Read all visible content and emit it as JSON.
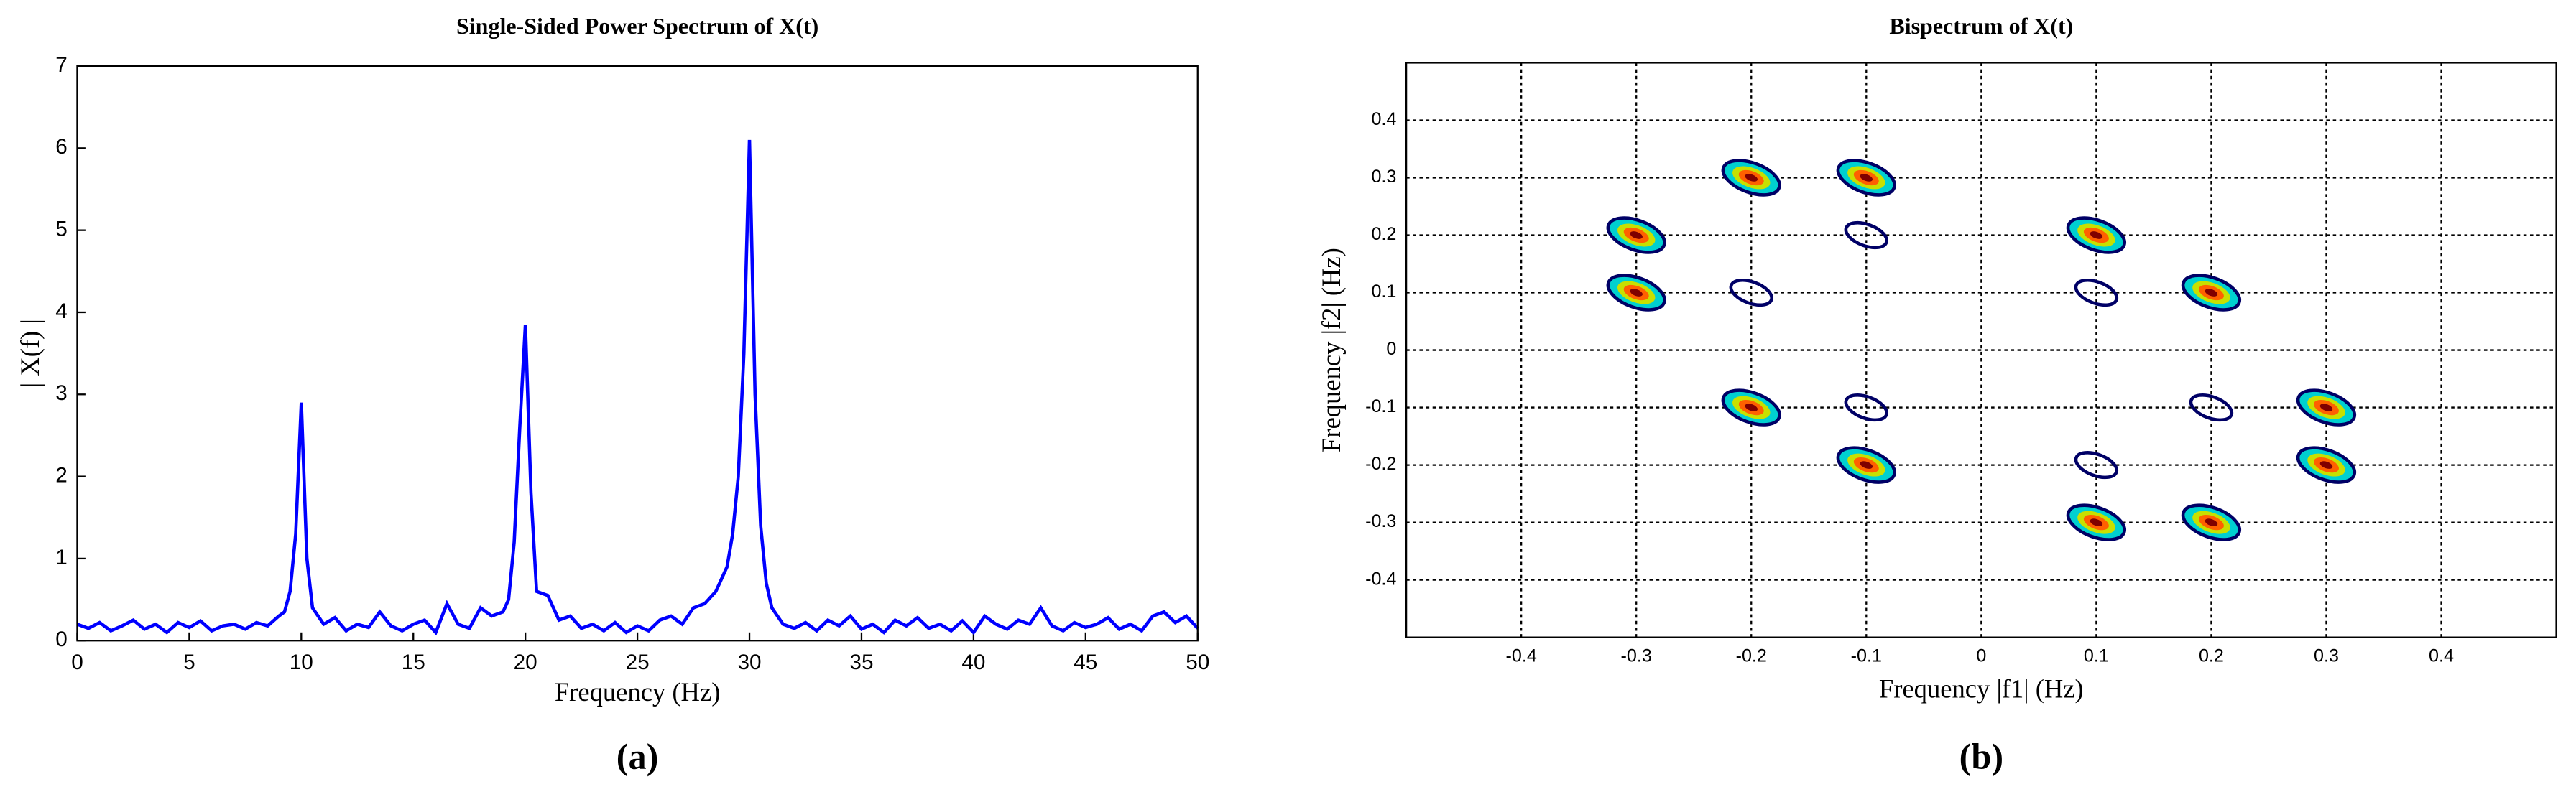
{
  "chart_data": [
    {
      "type": "line",
      "title": "Single-Sided Power Spectrum of X(t)",
      "xlabel": "Frequency (Hz)",
      "ylabel": "| X(f) |",
      "caption": "(a)",
      "x": [
        0,
        0.5,
        1,
        1.5,
        2,
        2.5,
        3,
        3.5,
        4,
        4.5,
        5,
        5.5,
        6,
        6.5,
        7,
        7.5,
        8,
        8.5,
        9,
        9.25,
        9.5,
        9.75,
        10,
        10.25,
        10.5,
        11,
        11.5,
        12,
        12.5,
        13,
        13.5,
        14,
        14.5,
        15,
        15.5,
        16,
        16.5,
        17,
        17.5,
        18,
        18.5,
        19,
        19.25,
        19.5,
        19.75,
        20,
        20.25,
        20.5,
        21,
        21.5,
        22,
        22.5,
        23,
        23.5,
        24,
        24.5,
        25,
        25.5,
        26,
        26.5,
        27,
        27.5,
        28,
        28.5,
        29,
        29.25,
        29.5,
        29.75,
        30,
        30.25,
        30.5,
        30.75,
        31,
        31.5,
        32,
        32.5,
        33,
        33.5,
        34,
        34.5,
        35,
        35.5,
        36,
        36.5,
        37,
        37.5,
        38,
        38.5,
        39,
        39.5,
        40,
        40.5,
        41,
        41.5,
        42,
        42.5,
        43,
        43.5,
        44,
        44.5,
        45,
        45.5,
        46,
        46.5,
        47,
        47.5,
        48,
        48.5,
        49,
        49.5,
        50
      ],
      "series": [
        {
          "color": "#0000ff",
          "values": [
            0.2,
            0.15,
            0.22,
            0.12,
            0.18,
            0.25,
            0.14,
            0.2,
            0.1,
            0.22,
            0.16,
            0.24,
            0.12,
            0.18,
            0.2,
            0.14,
            0.22,
            0.18,
            0.3,
            0.35,
            0.6,
            1.3,
            2.9,
            1.0,
            0.4,
            0.2,
            0.28,
            0.12,
            0.2,
            0.16,
            0.35,
            0.18,
            0.12,
            0.2,
            0.25,
            0.1,
            0.45,
            0.2,
            0.15,
            0.4,
            0.3,
            0.35,
            0.5,
            1.2,
            2.6,
            3.85,
            1.8,
            0.6,
            0.55,
            0.25,
            0.3,
            0.15,
            0.2,
            0.12,
            0.22,
            0.1,
            0.18,
            0.12,
            0.25,
            0.3,
            0.2,
            0.4,
            0.45,
            0.6,
            0.9,
            1.3,
            2.0,
            3.5,
            6.1,
            3.0,
            1.4,
            0.7,
            0.4,
            0.2,
            0.15,
            0.22,
            0.12,
            0.25,
            0.18,
            0.3,
            0.14,
            0.2,
            0.1,
            0.25,
            0.18,
            0.28,
            0.15,
            0.2,
            0.12,
            0.24,
            0.1,
            0.3,
            0.2,
            0.14,
            0.25,
            0.2,
            0.4,
            0.18,
            0.12,
            0.22,
            0.16,
            0.2,
            0.28,
            0.14,
            0.2,
            0.12,
            0.3,
            0.35,
            0.22,
            0.3,
            0.15
          ]
        }
      ],
      "xlim": [
        0,
        50
      ],
      "ylim": [
        0,
        7
      ],
      "xticks": [
        0,
        5,
        10,
        15,
        20,
        25,
        30,
        35,
        40,
        45,
        50
      ],
      "yticks": [
        0,
        1,
        2,
        3,
        4,
        5,
        6,
        7
      ]
    },
    {
      "type": "contour",
      "title": "Bispectrum of X(t)",
      "xlabel": "Frequency |f1| (Hz)",
      "ylabel": "Frequency |f2| (Hz)",
      "caption": "(b)",
      "series": [
        {
          "color": "#00d0d0",
          "x": [
            -0.2,
            -0.1,
            -0.3,
            0.1,
            -0.3,
            0.2,
            -0.2,
            0.3,
            -0.1,
            0.3,
            0.1,
            0.2
          ],
          "y": [
            0.3,
            0.3,
            0.2,
            0.2,
            0.1,
            0.1,
            -0.1,
            -0.1,
            -0.2,
            -0.2,
            -0.3,
            -0.3
          ]
        },
        {
          "color": "#000066",
          "x": [
            -0.1,
            -0.2,
            0.1,
            -0.1,
            0.2,
            0.1
          ],
          "y": [
            0.2,
            0.1,
            0.1,
            -0.1,
            -0.1,
            -0.2
          ]
        }
      ],
      "xlim": [
        -0.5,
        0.5
      ],
      "ylim": [
        -0.5,
        0.5
      ],
      "xticks": [
        -0.4,
        -0.3,
        -0.2,
        -0.1,
        0,
        0.1,
        0.2,
        0.3,
        0.4
      ],
      "yticks": [
        -0.4,
        -0.3,
        -0.2,
        -0.1,
        0,
        0.1,
        0.2,
        0.3,
        0.4
      ],
      "grid": true
    }
  ]
}
